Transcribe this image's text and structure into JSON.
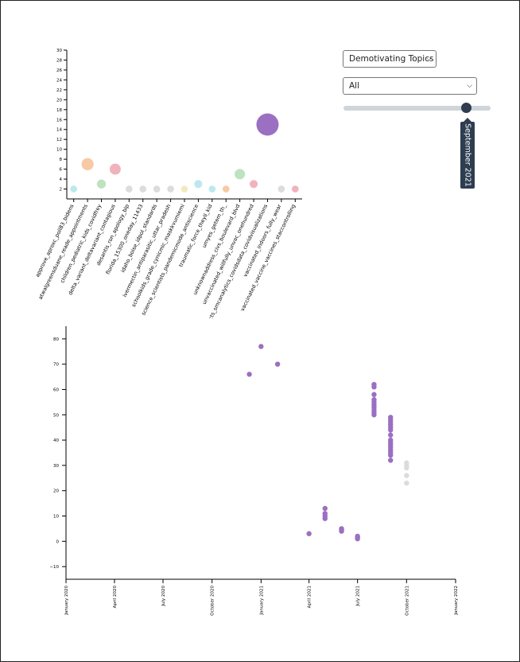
{
  "controls": {
    "topic_select": {
      "value": "Demotivating Topics"
    },
    "filter_select": {
      "value": "All"
    },
    "time_slider": {
      "value_fraction": 0.84,
      "tooltip": "September 2021"
    }
  },
  "colors": {
    "purple": "#9b6fc2",
    "peach": "#f7c9a5",
    "pink": "#f0b3bb",
    "green": "#bfe3c0",
    "cyan": "#bce8ee",
    "lightgray": "#dcdcdc",
    "cream": "#f3e9c0"
  },
  "chart_data": [
    {
      "type": "scatter",
      "ylim": [
        0,
        30
      ],
      "yticks": [
        2,
        4,
        6,
        8,
        10,
        12,
        14,
        16,
        18,
        20,
        22,
        24,
        26,
        28,
        30
      ],
      "categories": [
        "approve_aproxc_poll83_bidens",
        "atwalgreensduane_reade_appointments",
        "children_pediatric_kids_covidfrey",
        "delta_variant_deltavariant_contagious",
        "desantis_ron_apology_blp",
        "florida_15300_oneday_11433",
        "idaho_boise_idpol_standards",
        "ivermectin_antiparasitic_uttar_pradesh",
        "schoolkids_grade_cynicmic_maskkvumiemi",
        "science_scientists_pandemicmode_antiscience",
        "traumatic_force_theyll_kid",
        "umyes_getem_th_",
        "unknownaddress_civs_boulevard_blvd",
        "unvaccinated_willfully_unvac_onehundred",
        "ncts_smcanalytics_covidsdata_covidvisualizations",
        "vaccinated_indoors_fully_wear",
        "vaccinated_vaccine_vaccines_staccontrolling"
      ],
      "points": [
        {
          "category_index": 0,
          "y": 2,
          "size": 1,
          "color": "#bce8ee"
        },
        {
          "category_index": 1,
          "y": 7,
          "size": 8,
          "color": "#f7c9a5"
        },
        {
          "category_index": 2,
          "y": 3,
          "size": 3,
          "color": "#bfe3c0"
        },
        {
          "category_index": 3,
          "y": 6,
          "size": 6,
          "color": "#f0b3bb"
        },
        {
          "category_index": 4,
          "y": 2,
          "size": 1,
          "color": "#dcdcdc"
        },
        {
          "category_index": 5,
          "y": 2,
          "size": 1,
          "color": "#dcdcdc"
        },
        {
          "category_index": 6,
          "y": 2,
          "size": 1,
          "color": "#dcdcdc"
        },
        {
          "category_index": 7,
          "y": 2,
          "size": 1,
          "color": "#dcdcdc"
        },
        {
          "category_index": 8,
          "y": 2,
          "size": 1,
          "color": "#f3e9c0"
        },
        {
          "category_index": 9,
          "y": 3,
          "size": 2,
          "color": "#bce8ee"
        },
        {
          "category_index": 10,
          "y": 2,
          "size": 1,
          "color": "#bce8ee"
        },
        {
          "category_index": 11,
          "y": 2,
          "size": 1,
          "color": "#f7c9a5"
        },
        {
          "category_index": 12,
          "y": 5,
          "size": 5,
          "color": "#bfe3c0"
        },
        {
          "category_index": 13,
          "y": 3,
          "size": 2,
          "color": "#f0b3bb"
        },
        {
          "category_index": 14,
          "y": 15,
          "size": 40,
          "color": "#9b6fc2"
        },
        {
          "category_index": 15,
          "y": 2,
          "size": 1,
          "color": "#dcdcdc"
        },
        {
          "category_index": 16,
          "y": 2,
          "size": 1,
          "color": "#f0b3bb"
        }
      ]
    },
    {
      "type": "scatter",
      "ylim": [
        -15,
        85
      ],
      "yticks": [
        -10,
        0,
        10,
        20,
        30,
        40,
        50,
        60,
        70,
        80
      ],
      "xlim": [
        "2020-01-01",
        "2022-01-01"
      ],
      "xticks": [
        {
          "date": "2020-01-01",
          "label": "January 2020"
        },
        {
          "date": "2020-04-01",
          "label": "April 2020"
        },
        {
          "date": "2020-07-01",
          "label": "July 2020"
        },
        {
          "date": "2020-10-01",
          "label": "October 2020"
        },
        {
          "date": "2021-01-01",
          "label": "January 2021"
        },
        {
          "date": "2021-04-01",
          "label": "April 2021"
        },
        {
          "date": "2021-07-01",
          "label": "July 2021"
        },
        {
          "date": "2021-10-01",
          "label": "October 2021"
        },
        {
          "date": "2022-01-01",
          "label": "January 2022"
        }
      ],
      "series": [
        {
          "color": "#9b6fc2",
          "points": [
            {
              "x": "2020-12-10",
              "y": 66
            },
            {
              "x": "2021-01-01",
              "y": 77
            },
            {
              "x": "2021-02-01",
              "y": 70
            },
            {
              "x": "2021-04-01",
              "y": 3
            },
            {
              "x": "2021-05-01",
              "y": 13
            },
            {
              "x": "2021-05-01",
              "y": 11
            },
            {
              "x": "2021-05-01",
              "y": 10
            },
            {
              "x": "2021-05-01",
              "y": 9
            },
            {
              "x": "2021-06-01",
              "y": 5
            },
            {
              "x": "2021-06-01",
              "y": 4.5
            },
            {
              "x": "2021-06-01",
              "y": 4
            },
            {
              "x": "2021-07-01",
              "y": 2
            },
            {
              "x": "2021-07-01",
              "y": 1.5
            },
            {
              "x": "2021-07-01",
              "y": 1
            },
            {
              "x": "2021-08-01",
              "y": 62
            },
            {
              "x": "2021-08-01",
              "y": 61
            },
            {
              "x": "2021-08-01",
              "y": 58
            },
            {
              "x": "2021-08-01",
              "y": 56
            },
            {
              "x": "2021-08-01",
              "y": 55
            },
            {
              "x": "2021-08-01",
              "y": 54
            },
            {
              "x": "2021-08-01",
              "y": 53
            },
            {
              "x": "2021-08-01",
              "y": 52
            },
            {
              "x": "2021-08-01",
              "y": 51
            },
            {
              "x": "2021-08-01",
              "y": 50
            },
            {
              "x": "2021-09-01",
              "y": 49
            },
            {
              "x": "2021-09-01",
              "y": 48
            },
            {
              "x": "2021-09-01",
              "y": 47
            },
            {
              "x": "2021-09-01",
              "y": 46
            },
            {
              "x": "2021-09-01",
              "y": 45
            },
            {
              "x": "2021-09-01",
              "y": 44
            },
            {
              "x": "2021-09-01",
              "y": 42
            },
            {
              "x": "2021-09-01",
              "y": 40
            },
            {
              "x": "2021-09-01",
              "y": 39
            },
            {
              "x": "2021-09-01",
              "y": 38
            },
            {
              "x": "2021-09-01",
              "y": 37
            },
            {
              "x": "2021-09-01",
              "y": 36
            },
            {
              "x": "2021-09-01",
              "y": 35
            },
            {
              "x": "2021-09-01",
              "y": 34
            },
            {
              "x": "2021-09-01",
              "y": 32
            }
          ]
        },
        {
          "color": "#dcdcdc",
          "points": [
            {
              "x": "2021-10-01",
              "y": 31
            },
            {
              "x": "2021-10-01",
              "y": 30
            },
            {
              "x": "2021-10-01",
              "y": 29
            },
            {
              "x": "2021-10-01",
              "y": 26
            },
            {
              "x": "2021-10-01",
              "y": 23
            }
          ]
        }
      ]
    }
  ]
}
